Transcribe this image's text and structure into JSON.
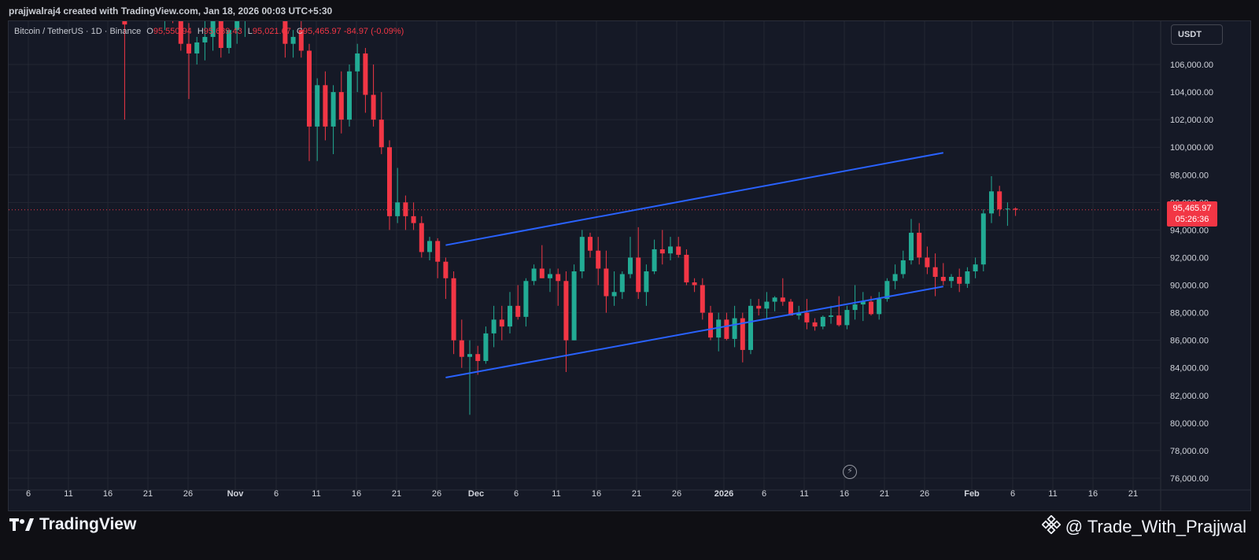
{
  "header": {
    "credit": "prajjwalraj4 created with TradingView.com, Jan 18, 2026 00:03 UTC+5:30"
  },
  "symbol_bar": {
    "symbol": "Bitcoin / TetherUS · 1D · Binance",
    "open_label": "O",
    "open": "95,550.94",
    "high_label": "H",
    "high": "95,639.43",
    "low_label": "L",
    "low": "95,021.67",
    "close_label": "C",
    "close": "95,465.97",
    "change": "-84.97 (-0.09%)"
  },
  "currency_button": {
    "label": "USDT"
  },
  "price_tag": {
    "price": "95,465.97",
    "countdown": "05:26:36"
  },
  "footer": {
    "brand": "TradingView",
    "watermark": "@ Trade_With_Prajjwal"
  },
  "colors": {
    "up": "#22ab94",
    "down": "#f23645",
    "channel": "#2962ff",
    "background": "#151926",
    "grid": "#232733",
    "text": "#d1d4dc"
  },
  "chart_data": {
    "type": "candlestick",
    "x_axis": {
      "ticks": [
        "6",
        "11",
        "16",
        "21",
        "26",
        "Nov",
        "6",
        "11",
        "16",
        "21",
        "26",
        "Dec",
        "6",
        "11",
        "16",
        "21",
        "26",
        "2026",
        "6",
        "11",
        "16",
        "21",
        "26",
        "Feb",
        "6",
        "11",
        "16",
        "21"
      ]
    },
    "y_axis": {
      "ticks": [
        "76,000.00",
        "78,000.00",
        "80,000.00",
        "82,000.00",
        "84,000.00",
        "86,000.00",
        "88,000.00",
        "90,000.00",
        "92,000.00",
        "94,000.00",
        "96,000.00",
        "98,000.00",
        "100,000.00",
        "102,000.00",
        "104,000.00",
        "106,000.00"
      ],
      "ylim": [
        75500,
        107500
      ]
    },
    "last_price": 95465.97,
    "channel_lines": [
      {
        "name": "upper",
        "start": {
          "x": "2025-11-27",
          "y": 92900
        },
        "end": {
          "x": "2026-01-28",
          "y": 99600
        }
      },
      {
        "name": "lower",
        "start": {
          "x": "2025-11-27",
          "y": 83300
        },
        "end": {
          "x": "2026-01-28",
          "y": 89900
        }
      }
    ],
    "candles": [
      [
        "2025-10-18",
        109200,
        112000,
        102000,
        108900
      ],
      [
        "2025-10-23",
        110500,
        111500,
        108500,
        111000
      ],
      [
        "2025-10-24",
        111000,
        112000,
        109000,
        110000
      ],
      [
        "2025-10-25",
        110000,
        110500,
        107000,
        107500
      ],
      [
        "2025-10-26",
        107500,
        109000,
        103500,
        106800
      ],
      [
        "2025-10-27",
        106800,
        108000,
        106000,
        107600
      ],
      [
        "2025-10-28",
        107600,
        109500,
        106300,
        108000
      ],
      [
        "2025-10-29",
        108000,
        110000,
        107000,
        109500
      ],
      [
        "2025-10-30",
        109500,
        110500,
        106500,
        107200
      ],
      [
        "2025-10-31",
        107200,
        108500,
        106800,
        108500
      ],
      [
        "2025-11-01",
        108500,
        110000,
        107500,
        109400
      ],
      [
        "2025-11-02",
        109400,
        110500,
        108000,
        110000
      ],
      [
        "2025-11-07",
        110300,
        110800,
        106500,
        107500
      ],
      [
        "2025-11-08",
        107500,
        108500,
        106500,
        108000
      ],
      [
        "2025-11-09",
        108500,
        109500,
        106500,
        107000
      ],
      [
        "2025-11-10",
        107000,
        107500,
        99000,
        101500
      ],
      [
        "2025-11-11",
        101500,
        105000,
        99000,
        104500
      ],
      [
        "2025-11-12",
        104500,
        105500,
        100500,
        101500
      ],
      [
        "2025-11-13",
        101500,
        104500,
        99500,
        104000
      ],
      [
        "2025-11-14",
        104000,
        105500,
        101000,
        102000
      ],
      [
        "2025-11-15",
        102000,
        106000,
        101500,
        105500
      ],
      [
        "2025-11-16",
        105500,
        107500,
        104000,
        106800
      ],
      [
        "2025-11-17",
        106800,
        107200,
        102500,
        103800
      ],
      [
        "2025-11-18",
        103800,
        106000,
        101500,
        102000
      ],
      [
        "2025-11-19",
        102000,
        104000,
        99500,
        100000
      ],
      [
        "2025-11-20",
        100000,
        100500,
        94000,
        95000
      ],
      [
        "2025-11-21",
        95000,
        98500,
        94500,
        96000
      ],
      [
        "2025-11-22",
        96000,
        96500,
        94000,
        95000
      ],
      [
        "2025-11-23",
        95000,
        96000,
        94000,
        94500
      ],
      [
        "2025-11-24",
        94500,
        95000,
        92000,
        92400
      ],
      [
        "2025-11-25",
        92400,
        93500,
        91800,
        93200
      ],
      [
        "2025-11-26",
        93200,
        93400,
        90500,
        91700
      ],
      [
        "2025-11-27",
        91700,
        92000,
        89000,
        90500
      ],
      [
        "2025-11-28",
        90500,
        91000,
        85000,
        86000
      ],
      [
        "2025-11-29",
        86000,
        87500,
        84000,
        84800
      ],
      [
        "2025-11-30",
        84800,
        86000,
        80600,
        85000
      ],
      [
        "2025-12-01",
        85000,
        85600,
        83500,
        84500
      ],
      [
        "2025-12-02",
        84500,
        87000,
        84300,
        86500
      ],
      [
        "2025-12-03",
        86500,
        88500,
        85500,
        87500
      ],
      [
        "2025-12-04",
        87500,
        88500,
        86000,
        87000
      ],
      [
        "2025-12-05",
        87000,
        89500,
        86500,
        88500
      ],
      [
        "2025-12-06",
        88500,
        90000,
        87500,
        87700
      ],
      [
        "2025-12-07",
        87700,
        90500,
        87000,
        90300
      ],
      [
        "2025-12-08",
        90300,
        91500,
        90000,
        91200
      ],
      [
        "2025-12-09",
        91200,
        92900,
        90500,
        90500
      ],
      [
        "2025-12-10",
        90500,
        91200,
        89500,
        90800
      ],
      [
        "2025-12-11",
        90800,
        91200,
        88500,
        90300
      ],
      [
        "2025-12-12",
        90300,
        91000,
        83700,
        86000
      ],
      [
        "2025-12-13",
        86000,
        91500,
        86000,
        91000
      ],
      [
        "2025-12-14",
        91000,
        94000,
        90500,
        93500
      ],
      [
        "2025-12-15",
        93500,
        93800,
        92000,
        92500
      ],
      [
        "2025-12-16",
        92500,
        93500,
        90000,
        91200
      ],
      [
        "2025-12-17",
        91200,
        92500,
        88000,
        89200
      ],
      [
        "2025-12-18",
        89200,
        91000,
        88500,
        89500
      ],
      [
        "2025-12-19",
        89500,
        91000,
        89000,
        90800
      ],
      [
        "2025-12-20",
        90800,
        93500,
        90500,
        92000
      ],
      [
        "2025-12-21",
        92000,
        94200,
        89000,
        89500
      ],
      [
        "2025-12-22",
        89500,
        91500,
        88500,
        91000
      ],
      [
        "2025-12-23",
        91000,
        93300,
        90800,
        92600
      ],
      [
        "2025-12-24",
        92600,
        94000,
        91500,
        92300
      ],
      [
        "2025-12-25",
        92300,
        93500,
        91800,
        92800
      ],
      [
        "2025-12-26",
        92800,
        93500,
        92000,
        92200
      ],
      [
        "2025-12-27",
        92200,
        92600,
        90000,
        90200
      ],
      [
        "2025-12-28",
        90200,
        90500,
        89500,
        90000
      ],
      [
        "2025-12-29",
        90000,
        90500,
        87500,
        88000
      ],
      [
        "2025-12-30",
        88000,
        88500,
        86000,
        86200
      ],
      [
        "2025-12-31",
        86200,
        88000,
        85200,
        87500
      ],
      [
        "2026-01-01",
        87500,
        88000,
        86000,
        86100
      ],
      [
        "2026-01-02",
        86100,
        88500,
        85500,
        87600
      ],
      [
        "2026-01-03",
        87600,
        88000,
        84400,
        85300
      ],
      [
        "2026-01-04",
        85300,
        89000,
        85000,
        88500
      ],
      [
        "2026-01-05",
        88500,
        89000,
        87800,
        88300
      ],
      [
        "2026-01-06",
        88300,
        89500,
        87500,
        88800
      ],
      [
        "2026-01-07",
        88800,
        89200,
        88100,
        89100
      ],
      [
        "2026-01-08",
        89100,
        90500,
        88500,
        88800
      ],
      [
        "2026-01-09",
        88800,
        89000,
        87800,
        87800
      ],
      [
        "2026-01-10",
        87800,
        88500,
        87500,
        88000
      ],
      [
        "2026-01-11",
        88000,
        89000,
        86800,
        87300
      ],
      [
        "2026-01-12",
        87300,
        87600,
        86700,
        87000
      ],
      [
        "2026-01-13",
        87000,
        87800,
        86800,
        87700
      ],
      [
        "2026-01-14",
        87700,
        88500,
        87200,
        87800
      ],
      [
        "2026-01-15",
        87800,
        89200,
        87000,
        87100
      ],
      [
        "2026-01-16",
        87100,
        88500,
        86800,
        88200
      ],
      [
        "2026-01-17",
        88200,
        90000,
        87500,
        88600
      ],
      [
        "2026-01-18",
        88600,
        89500,
        87400,
        88800
      ],
      [
        "2026-01-19",
        88800,
        89200,
        87800,
        87900
      ],
      [
        "2026-01-20",
        87900,
        89500,
        87500,
        89000
      ],
      [
        "2026-01-21",
        89000,
        90500,
        88800,
        90300
      ],
      [
        "2026-01-22",
        90300,
        91500,
        89700,
        90800
      ],
      [
        "2026-01-23",
        90800,
        92500,
        90500,
        91800
      ],
      [
        "2026-01-24",
        91800,
        94800,
        91500,
        93800
      ],
      [
        "2026-01-25",
        93800,
        94500,
        91500,
        92000
      ],
      [
        "2026-01-26",
        92000,
        92800,
        90800,
        91300
      ],
      [
        "2026-01-27",
        91300,
        92300,
        89200,
        90600
      ],
      [
        "2026-01-28",
        90600,
        91600,
        90000,
        90300
      ],
      [
        "2026-01-29",
        90300,
        90800,
        89800,
        90600
      ],
      [
        "2026-01-30",
        90600,
        91200,
        89500,
        90100
      ],
      [
        "2026-01-31",
        90100,
        91300,
        89800,
        91000
      ],
      [
        "2026-02-01",
        91000,
        92000,
        90500,
        91500
      ],
      [
        "2026-02-02",
        91500,
        95500,
        91000,
        95200
      ],
      [
        "2026-02-03",
        95200,
        97900,
        94500,
        96800
      ],
      [
        "2026-02-04",
        96800,
        97200,
        95000,
        95500
      ],
      [
        "2026-02-05",
        95500,
        96000,
        94300,
        95550
      ],
      [
        "2026-02-06",
        95550,
        95640,
        95020,
        95466
      ]
    ]
  }
}
